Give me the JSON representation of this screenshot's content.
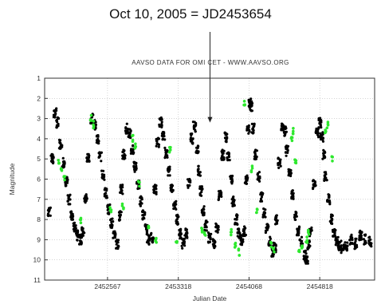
{
  "annotation": {
    "text": "Oct 10, 2005 = JD2453654",
    "target_x": 2453654,
    "target_y": 3.2
  },
  "chart_data": {
    "type": "scatter",
    "title": "AAVSO DATA FOR OMI CET - WWW.AAVSO.ORG",
    "xlabel": "Julian Date",
    "ylabel": "Magnitude",
    "xlim": [
      2451900,
      2455400
    ],
    "ylim": [
      11,
      1
    ],
    "y_inverted": true,
    "grid": true,
    "xticks": [
      2452567,
      2453318,
      2454068,
      2454818
    ],
    "yticks": [
      1,
      2,
      3,
      4,
      5,
      6,
      7,
      8,
      9,
      10,
      11
    ],
    "series": [
      {
        "color": "#000000",
        "x": [
          2451950,
          2451980,
          2452010,
          2452040,
          2452070,
          2452100,
          2452130,
          2452160,
          2452190,
          2452220,
          2452250,
          2452280,
          2452310,
          2452335,
          2452360,
          2452400,
          2452430,
          2452460,
          2452490,
          2452520,
          2452550,
          2452580,
          2452610,
          2452640,
          2452670,
          2452700,
          2452715,
          2452740,
          2452770,
          2452800,
          2452830,
          2452860,
          2452890,
          2452920,
          2452950,
          2452980,
          2453000,
          2453040,
          2453070,
          2453100,
          2453130,
          2453160,
          2453190,
          2453220,
          2453250,
          2453280,
          2453310,
          2453340,
          2453370,
          2453400,
          2453430,
          2453460,
          2453490,
          2453520,
          2453540,
          2453560,
          2453580,
          2453610,
          2453650,
          2453700,
          2453730,
          2453760,
          2453790,
          2453820,
          2453850,
          2453880,
          2453900,
          2453930,
          2453960,
          2453990,
          2454020,
          2454040,
          2454060,
          2454080,
          2454090,
          2454110,
          2454140,
          2454170,
          2454200,
          2454230,
          2454260,
          2454290,
          2454320,
          2454340,
          2454360,
          2454390,
          2454420,
          2454450,
          2454470,
          2454500,
          2454530,
          2454560,
          2454590,
          2454620,
          2454660,
          2454680,
          2454700,
          2454720,
          2454760,
          2454790,
          2454820,
          2454840,
          2454860,
          2454880,
          2454910,
          2454940,
          2454970,
          2455000,
          2455030,
          2455060,
          2455100,
          2455150,
          2455200,
          2455250,
          2455300,
          2455350
        ],
        "y": [
          7.6,
          5.0,
          2.7,
          3.2,
          4.3,
          5.2,
          6.1,
          7.0,
          7.8,
          8.4,
          8.8,
          9.0,
          8.6,
          7.0,
          5.0,
          3.0,
          3.3,
          4.0,
          4.9,
          5.8,
          6.7,
          7.5,
          8.2,
          8.8,
          9.2,
          7.8,
          6.5,
          4.8,
          3.5,
          3.7,
          4.5,
          5.4,
          6.3,
          7.1,
          7.8,
          8.5,
          9.0,
          8.9,
          6.5,
          4.2,
          3.2,
          3.8,
          4.7,
          5.6,
          6.5,
          7.3,
          8.0,
          8.7,
          9.2,
          8.7,
          6.2,
          4.0,
          3.4,
          4.5,
          5.6,
          6.6,
          7.6,
          8.3,
          8.9,
          9.2,
          8.4,
          6.8,
          4.8,
          3.9,
          4.9,
          6.0,
          7.1,
          8.0,
          8.7,
          9.0,
          8.6,
          6.0,
          3.5,
          2.2,
          2.4,
          3.5,
          4.8,
          5.9,
          6.9,
          7.7,
          8.4,
          9.1,
          9.6,
          9.4,
          8.0,
          5.2,
          3.4,
          3.6,
          4.6,
          5.7,
          6.8,
          7.8,
          8.6,
          9.1,
          9.8,
          10.0,
          9.3,
          8.6,
          6.3,
          3.7,
          3.2,
          3.9,
          4.8,
          5.9,
          7.0,
          8.0,
          8.7,
          9.1,
          9.3,
          9.4,
          9.3,
          9.0,
          9.2,
          8.8,
          9.0,
          9.1
        ]
      },
      {
        "color": "#2ee82e",
        "x": [
          2452050,
          2452080,
          2452110,
          2452285,
          2452390,
          2452420,
          2452600,
          2452730,
          2452830,
          2452860,
          2452900,
          2453000,
          2453080,
          2453230,
          2453300,
          2453570,
          2453600,
          2453880,
          2453920,
          2453960,
          2454020,
          2454100,
          2454150,
          2454300,
          2454330,
          2454520,
          2454540,
          2454560,
          2454600,
          2454630,
          2454680,
          2454700,
          2454880,
          2454900,
          2454950
        ],
        "y": [
          5.2,
          5.6,
          6.0,
          8.0,
          3.0,
          3.3,
          7.5,
          7.3,
          4.0,
          4.4,
          6.2,
          8.5,
          9.0,
          4.5,
          9.0,
          8.5,
          8.8,
          8.6,
          9.3,
          9.6,
          2.3,
          5.5,
          7.5,
          9.2,
          9.5,
          4.0,
          3.6,
          5.2,
          9.6,
          9.3,
          9.0,
          8.6,
          3.6,
          3.3,
          5.0
        ]
      }
    ]
  }
}
